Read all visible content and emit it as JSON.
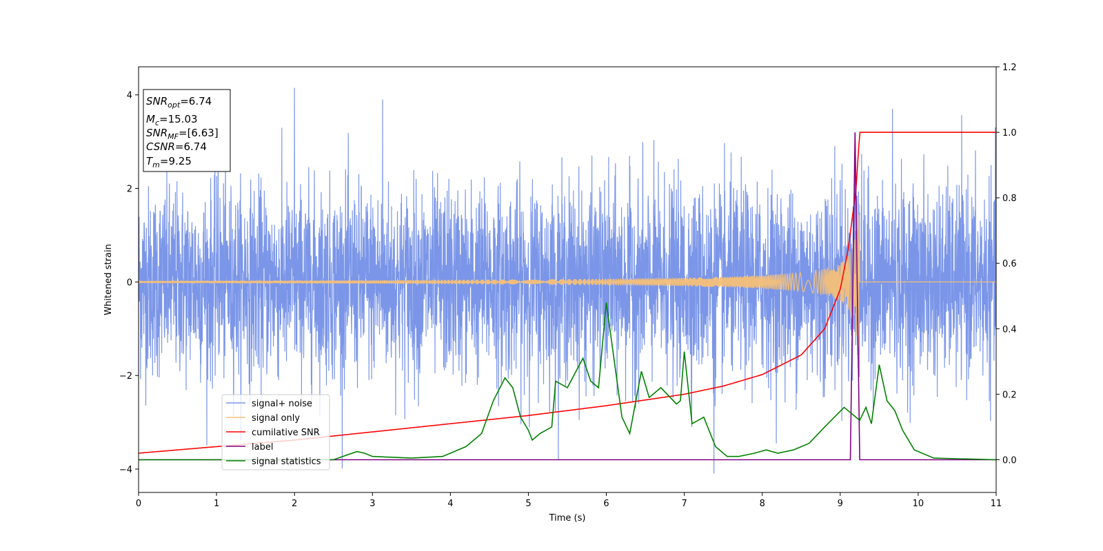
{
  "chart_data": {
    "type": "line",
    "xlabel": "Time (s)",
    "ylabel": "Whitened strain",
    "xlim": [
      0,
      11
    ],
    "ylim_left": [
      -4.5,
      4.6
    ],
    "ylim_right": [
      -0.1,
      1.2
    ],
    "x_ticks": [
      0,
      1,
      2,
      3,
      4,
      5,
      6,
      7,
      8,
      9,
      10,
      11
    ],
    "y_ticks_left": [
      -4,
      -2,
      0,
      2,
      4
    ],
    "y_ticks_right": [
      0.0,
      0.2,
      0.4,
      0.6,
      0.8,
      1.0,
      1.2
    ],
    "grid": false,
    "legend_position": "lower-left",
    "annotation": {
      "snr_opt": {
        "main": "SNR",
        "sub": "opt",
        "value": "=6.74"
      },
      "mc": {
        "main": "M",
        "sub": "c",
        "value": "=15.03"
      },
      "snr_mf": {
        "main": "SNR",
        "sub": "MF",
        "value": "=[6.63]"
      },
      "csnr": {
        "main": "CSNR",
        "value": "=6.74"
      },
      "tm": {
        "main": "T",
        "sub": "m",
        "value": "=9.25"
      }
    },
    "series": [
      {
        "name": "signal+ noise",
        "axis": "left",
        "color": "#7b96e8",
        "kind": "noise",
        "sigma": 1.0,
        "approx_range": [
          -4.1,
          4.2
        ],
        "notable_peaks": [
          [
            2.0,
            4.15
          ],
          [
            7.38,
            -4.1
          ],
          [
            9.67,
            3.7
          ],
          [
            3.13,
            3.9
          ],
          [
            1.02,
            3.85
          ]
        ]
      },
      {
        "name": "signal only",
        "axis": "left",
        "color": "#f5c078",
        "kind": "chirp",
        "merger_time": 9.25,
        "x": [
          0,
          1,
          2,
          3,
          4,
          5,
          6,
          7,
          7.5,
          8,
          8.5,
          8.8,
          9.0,
          9.1,
          9.2,
          9.25
        ],
        "amplitude": [
          0.02,
          0.025,
          0.03,
          0.035,
          0.045,
          0.055,
          0.07,
          0.09,
          0.11,
          0.14,
          0.2,
          0.28,
          0.4,
          0.55,
          1.0,
          1.55
        ]
      },
      {
        "name": "cumilative SNR",
        "axis": "right",
        "color": "#ff0000",
        "x": [
          0,
          1,
          2,
          3,
          4,
          5,
          6,
          7,
          7.5,
          8,
          8.5,
          8.8,
          9.0,
          9.1,
          9.2,
          9.25,
          11
        ],
        "y": [
          0.02,
          0.04,
          0.06,
          0.085,
          0.11,
          0.135,
          0.165,
          0.2,
          0.225,
          0.26,
          0.32,
          0.4,
          0.52,
          0.64,
          0.82,
          1.0,
          1.0
        ]
      },
      {
        "name": "label",
        "axis": "right",
        "color": "#800080",
        "x": [
          0,
          9.13,
          9.19,
          9.25,
          11
        ],
        "y": [
          0,
          0,
          1.0,
          0,
          0
        ]
      },
      {
        "name": "signal statistics",
        "axis": "right",
        "color": "#008000",
        "x": [
          0,
          2.5,
          2.8,
          2.9,
          3.0,
          3.5,
          3.9,
          4.2,
          4.4,
          4.55,
          4.7,
          4.8,
          4.9,
          5.0,
          5.05,
          5.15,
          5.3,
          5.35,
          5.5,
          5.7,
          5.8,
          5.9,
          6.0,
          6.2,
          6.3,
          6.45,
          6.55,
          6.7,
          6.9,
          6.95,
          7.0,
          7.1,
          7.25,
          7.4,
          7.55,
          7.7,
          7.9,
          8.05,
          8.2,
          8.4,
          8.6,
          8.8,
          9.05,
          9.15,
          9.25,
          9.33,
          9.4,
          9.5,
          9.6,
          9.7,
          9.8,
          9.95,
          10.2,
          11
        ],
        "y": [
          0,
          0,
          0.025,
          0.02,
          0.01,
          0.005,
          0.01,
          0.04,
          0.08,
          0.18,
          0.25,
          0.22,
          0.13,
          0.09,
          0.06,
          0.08,
          0.1,
          0.24,
          0.22,
          0.31,
          0.24,
          0.22,
          0.48,
          0.13,
          0.08,
          0.27,
          0.19,
          0.22,
          0.17,
          0.18,
          0.33,
          0.11,
          0.13,
          0.04,
          0.01,
          0.01,
          0.02,
          0.03,
          0.02,
          0.03,
          0.05,
          0.1,
          0.16,
          0.14,
          0.12,
          0.16,
          0.11,
          0.29,
          0.18,
          0.15,
          0.09,
          0.03,
          0.005,
          0
        ]
      }
    ]
  }
}
